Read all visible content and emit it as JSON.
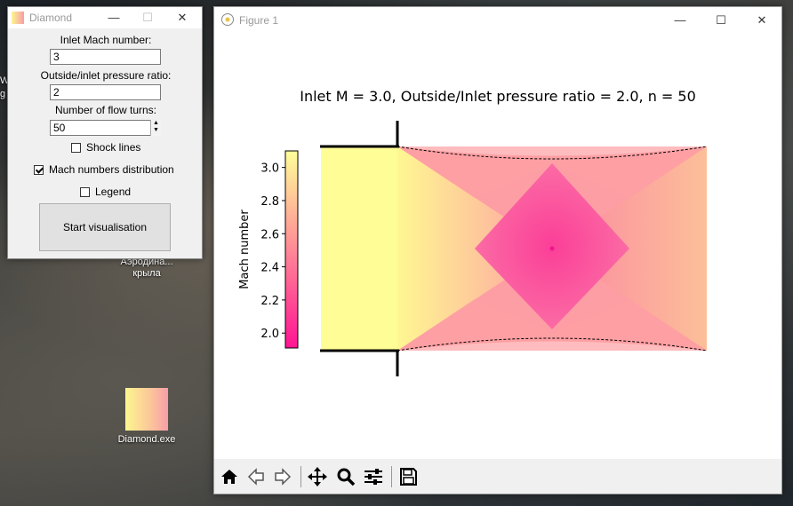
{
  "desktop": {
    "icons": [
      {
        "label": "Diamond.exe"
      },
      {
        "label": "Аэродина... крыла"
      },
      {
        "label": "We g"
      }
    ]
  },
  "dialog": {
    "title": "Diamond",
    "controls": {
      "minimize": "—",
      "maximize": "☐",
      "close": "✕"
    },
    "inlet_mach_label": "Inlet Mach number:",
    "inlet_mach_value": "3",
    "pressure_ratio_label": "Outside/inlet pressure ratio:",
    "pressure_ratio_value": "2",
    "flow_turns_label": "Number of flow turns:",
    "flow_turns_value": "50",
    "checkboxes": [
      {
        "label": "Shock lines",
        "checked": false
      },
      {
        "label": "Mach numbers distribution",
        "checked": true
      },
      {
        "label": "Legend",
        "checked": false
      }
    ],
    "start_button": "Start visualisation"
  },
  "figure": {
    "title": "Figure 1",
    "controls": {
      "minimize": "—",
      "maximize": "☐",
      "close": "✕"
    },
    "plot_title": "Inlet M = 3.0, Outside/Inlet pressure ratio = 2.0, n = 50",
    "toolbar": [
      {
        "name": "home-icon"
      },
      {
        "name": "back-icon"
      },
      {
        "name": "forward-icon"
      },
      {
        "name": "pan-icon"
      },
      {
        "name": "zoom-icon"
      },
      {
        "name": "configure-subplots-icon"
      },
      {
        "name": "save-icon"
      }
    ]
  },
  "chart_data": {
    "type": "heatmap",
    "colorbar": {
      "label": "Mach number",
      "ticks": [
        3.0,
        2.8,
        2.6,
        2.4,
        2.2,
        2.0
      ],
      "tick_labels": [
        "3.0",
        "2.8",
        "2.6",
        "2.4",
        "2.2",
        "2.0"
      ],
      "range": [
        1.91,
        3.1
      ],
      "colormap": [
        "#ff1493",
        "#ffff99"
      ]
    },
    "field": {
      "inlet_mach": 3.0,
      "center_min_mach": 2.0,
      "boundary_style": "dashed"
    }
  }
}
